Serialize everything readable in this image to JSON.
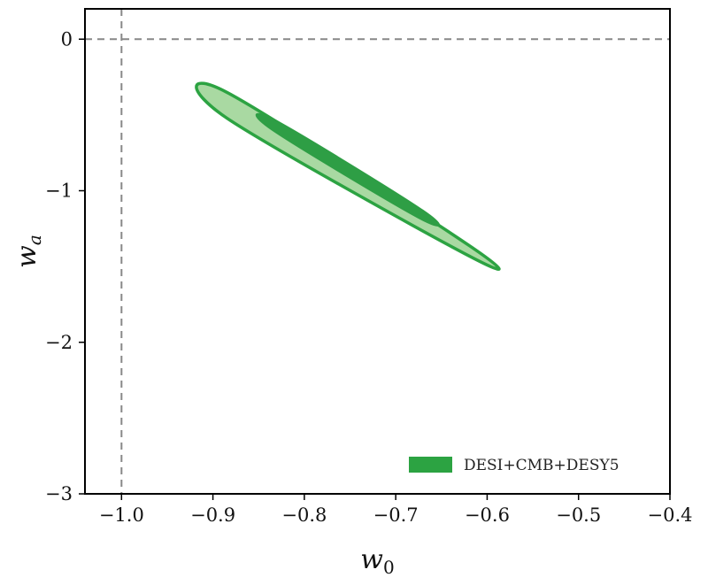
{
  "chart_data": {
    "type": "contour",
    "xlabel": {
      "base": "w",
      "sub": "0"
    },
    "ylabel": {
      "base": "w",
      "sub": "a"
    },
    "xlim": [
      -1.04,
      -0.4
    ],
    "ylim": [
      -3.0,
      0.2
    ],
    "xticks": [
      {
        "value": -1.0,
        "label": "−1.0"
      },
      {
        "value": -0.9,
        "label": "−0.9"
      },
      {
        "value": -0.8,
        "label": "−0.8"
      },
      {
        "value": -0.7,
        "label": "−0.7"
      },
      {
        "value": -0.6,
        "label": "−0.6"
      },
      {
        "value": -0.5,
        "label": "−0.5"
      },
      {
        "value": -0.4,
        "label": "−0.4"
      }
    ],
    "yticks": [
      {
        "value": 0,
        "label": "0"
      },
      {
        "value": -1,
        "label": "−1"
      },
      {
        "value": -2,
        "label": "−2"
      },
      {
        "value": -3,
        "label": "−3"
      }
    ],
    "reference_lines": [
      {
        "orientation": "vertical",
        "value": -1.0,
        "style": "dashed",
        "color": "#888888"
      },
      {
        "orientation": "horizontal",
        "value": 0.0,
        "style": "dashed",
        "color": "#888888"
      }
    ],
    "series": [
      {
        "name": "DESI+CMB+DESY5",
        "color": "#2ca342",
        "contours": [
          {
            "level": "95%",
            "center": [
              -0.752,
              -0.865
            ],
            "fill": "#a9d9a2",
            "edge": "#2ca342",
            "points": [
              [
                -0.885,
                -0.35
              ],
              [
                -0.62,
                -1.36
              ],
              [
                -0.62,
                -1.43
              ],
              [
                -0.885,
                -0.52
              ]
            ]
          },
          {
            "level": "68%",
            "center": [
              -0.751,
              -0.85
            ],
            "fill": "#2e9e45",
            "edge": "#2e9e45",
            "points": [
              [
                -0.83,
                -0.54
              ],
              [
                -0.67,
                -1.13
              ],
              [
                -0.675,
                -1.18
              ],
              [
                -0.835,
                -0.6
              ]
            ]
          }
        ]
      }
    ],
    "legend": {
      "position": "bottom-right",
      "entries": [
        "DESI+CMB+DESY5"
      ]
    },
    "grid": false
  }
}
